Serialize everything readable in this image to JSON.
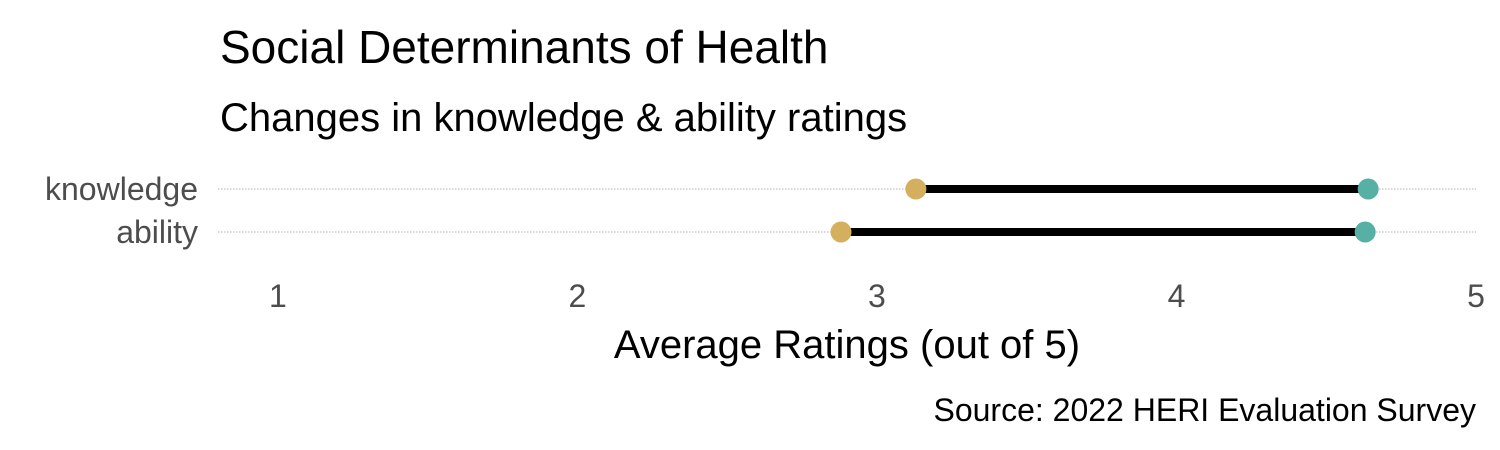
{
  "chart_data": {
    "type": "dumbbell",
    "title": "Social Determinants of Health",
    "subtitle": "Changes in knowledge & ability ratings",
    "xlabel": "Average Ratings (out of 5)",
    "ylabel": "",
    "caption": "Source: 2022 HERI Evaluation Survey",
    "xlim": [
      0.8,
      5.0
    ],
    "x_ticks": [
      1,
      2,
      3,
      4,
      5
    ],
    "grid": "dotted horizontal guide per category",
    "legend": "none",
    "colors": {
      "before": "#d4b05e",
      "after": "#56b0a4",
      "segment": "#000000",
      "guide": "#b0b0b0"
    },
    "categories": [
      "knowledge",
      "ability"
    ],
    "series": [
      {
        "values": [
          3.13,
          2.88
        ]
      },
      {
        "values": [
          4.64,
          4.63
        ]
      }
    ]
  }
}
